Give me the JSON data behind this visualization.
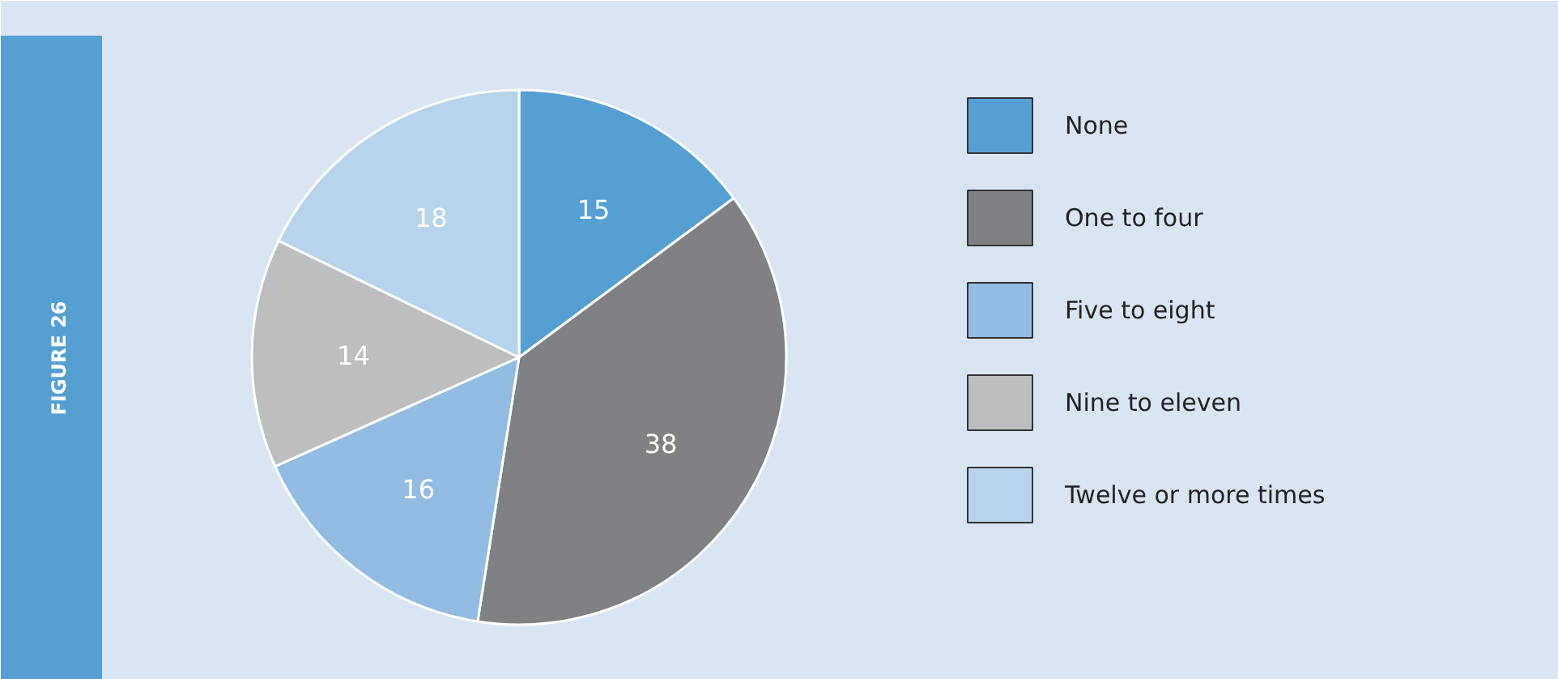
{
  "chart_data": {
    "type": "pie",
    "title": "FIGURE 26",
    "categories": [
      "None",
      "One to four",
      "Five to eight",
      "Nine to eleven",
      "Twelve or more times"
    ],
    "values": [
      15,
      38,
      16,
      14,
      18
    ],
    "colors": [
      "#559fd3",
      "#808184",
      "#93bce3",
      "#bcbec0",
      "#b8d3ec"
    ],
    "data_labels": true,
    "legend": "right"
  }
}
